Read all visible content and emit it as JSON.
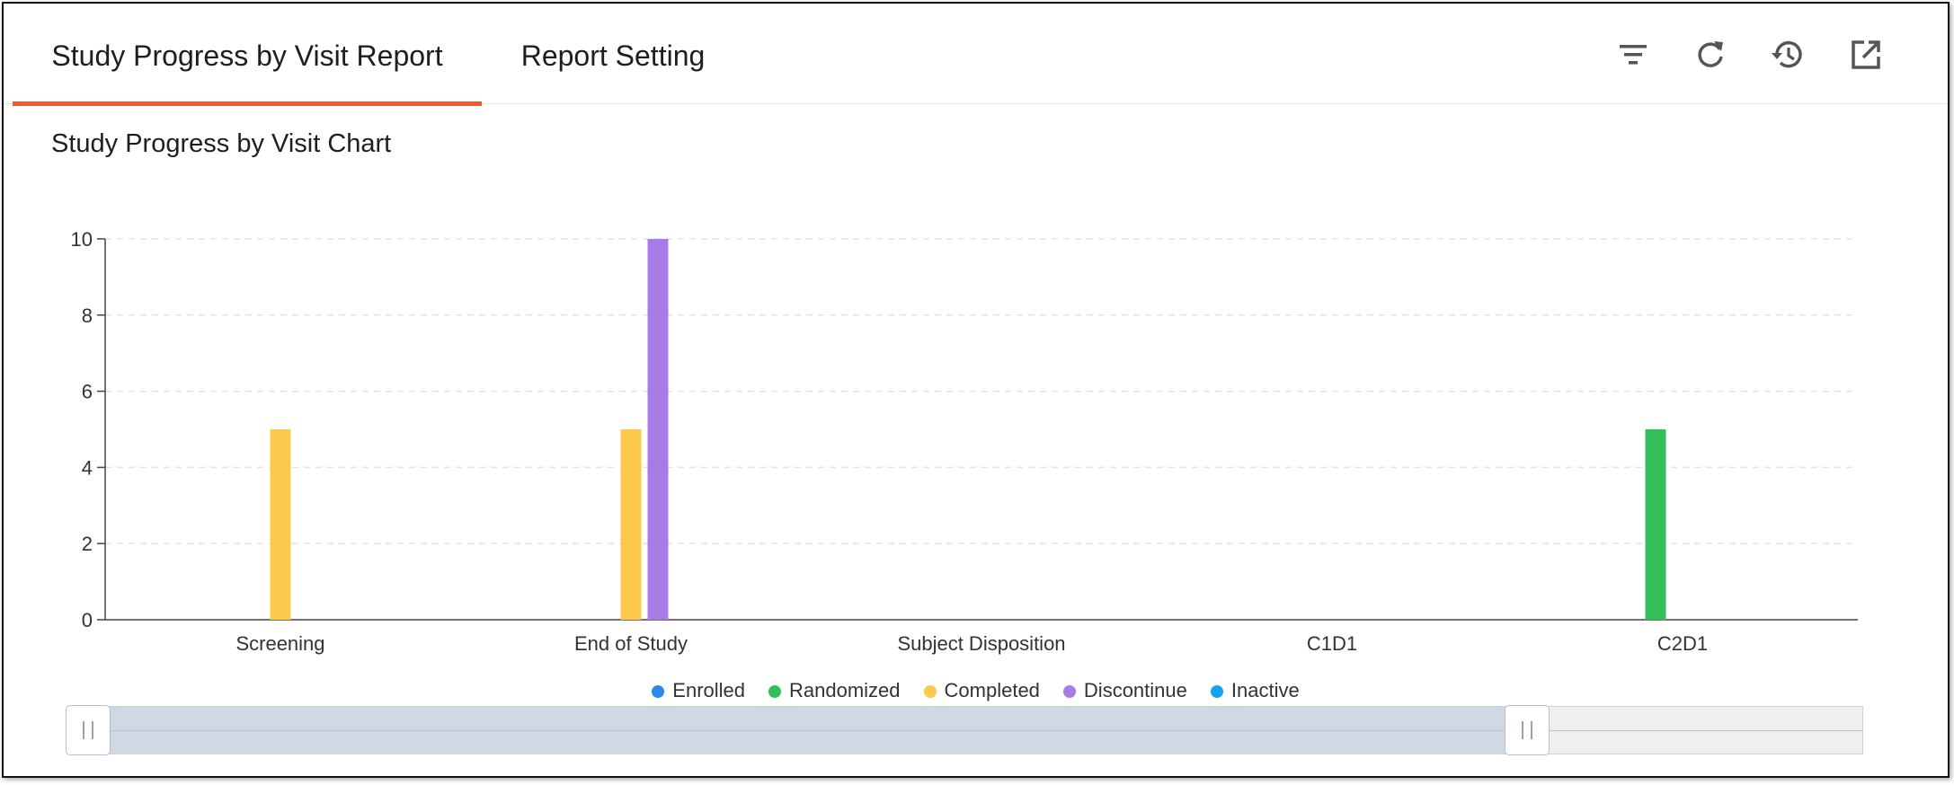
{
  "tabs": [
    {
      "label": "Study Progress by Visit Report",
      "active": true
    },
    {
      "label": "Report Setting",
      "active": false
    }
  ],
  "toolbar": {
    "icons": [
      "filter-icon",
      "refresh-icon",
      "history-icon",
      "open-external-icon"
    ]
  },
  "chart_title": "Study Progress by Visit Chart",
  "chart_data": {
    "type": "bar",
    "title": "Study Progress by Visit Chart",
    "xlabel": "",
    "ylabel": "",
    "categories": [
      "Screening",
      "End of Study",
      "Subject Disposition",
      "C1D1",
      "C2D1"
    ],
    "series": [
      {
        "name": "Enrolled",
        "color": "#2b8ae8",
        "values": [
          0,
          0,
          0,
          0,
          0
        ]
      },
      {
        "name": "Randomized",
        "color": "#32bf5a",
        "values": [
          0,
          0,
          0,
          0,
          5
        ]
      },
      {
        "name": "Completed",
        "color": "#fbc94c",
        "values": [
          5,
          5,
          0,
          0,
          0
        ]
      },
      {
        "name": "Discontinue",
        "color": "#a67ce6",
        "values": [
          0,
          10,
          0,
          0,
          0
        ]
      },
      {
        "name": "Inactive",
        "color": "#14a3ee",
        "values": [
          0,
          0,
          0,
          0,
          0
        ]
      }
    ],
    "yticks": [
      "0",
      "2",
      "4",
      "6",
      "8",
      "10"
    ],
    "ylim": [
      0,
      10
    ],
    "grid": true,
    "legend_position": "bottom-center"
  },
  "zoom": {
    "start": 0,
    "end": 0.81
  }
}
